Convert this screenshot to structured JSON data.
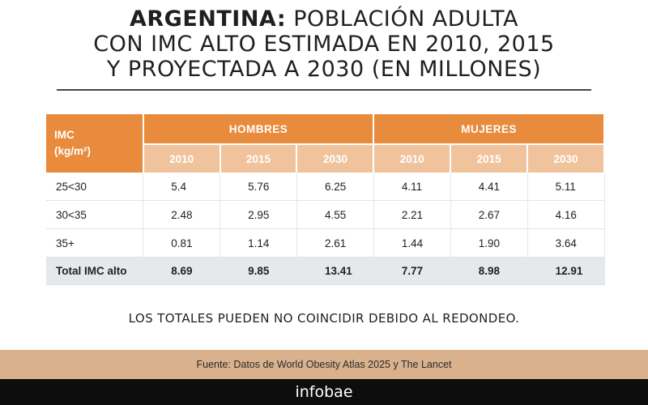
{
  "title": {
    "strong": "ARGENTINA:",
    "rest_line1": " POBLACIÓN ADULTA",
    "line2": "CON IMC ALTO ESTIMADA EN 2010, 2015",
    "line3": "Y PROYECTADA A 2030 (EN MILLONES)"
  },
  "table": {
    "row_header_line1": "IMC",
    "row_header_line2": "(kg/m²)",
    "groups": [
      "HOMBRES",
      "MUJERES"
    ],
    "years": [
      "2010",
      "2015",
      "2030",
      "2010",
      "2015",
      "2030"
    ],
    "rows": [
      {
        "label": "25<30",
        "values": [
          "5.4",
          "5.76",
          "6.25",
          "4.11",
          "4.41",
          "5.11"
        ]
      },
      {
        "label": "30<35",
        "values": [
          "2.48",
          "2.95",
          "4.55",
          "2.21",
          "2.67",
          "4.16"
        ]
      },
      {
        "label": "35+",
        "values": [
          "0.81",
          "1.14",
          "2.61",
          "1.44",
          "1.90",
          "3.64"
        ]
      },
      {
        "label": "Total IMC alto",
        "values": [
          "8.69",
          "9.85",
          "13.41",
          "7.77",
          "8.98",
          "12.91"
        ]
      }
    ]
  },
  "note": "LOS TOTALES PUEDEN NO COINCIDIR DEBIDO AL REDONDEO.",
  "source": "Fuente: Datos de World Obesity Atlas 2025 y The Lancet",
  "brand": "infobae",
  "colors": {
    "header_orange": "#e88b3c",
    "subheader_peach": "#f0c39c",
    "total_row_gray": "#e6e9ec",
    "source_band": "#d9b28d",
    "brand_band": "#0d0d0d"
  },
  "chart_data": {
    "type": "table",
    "title": "ARGENTINA: POBLACIÓN ADULTA CON IMC ALTO ESTIMADA EN 2010, 2015 Y PROYECTADA A 2030 (EN MILLONES)",
    "columns": [
      "IMC (kg/m²)",
      "HOMBRES 2010",
      "HOMBRES 2015",
      "HOMBRES 2030",
      "MUJERES 2010",
      "MUJERES 2015",
      "MUJERES 2030"
    ],
    "rows": [
      [
        "25<30",
        5.4,
        5.76,
        6.25,
        4.11,
        4.41,
        5.11
      ],
      [
        "30<35",
        2.48,
        2.95,
        4.55,
        2.21,
        2.67,
        4.16
      ],
      [
        "35+",
        0.81,
        1.14,
        2.61,
        1.44,
        1.9,
        3.64
      ],
      [
        "Total IMC alto",
        8.69,
        9.85,
        13.41,
        7.77,
        8.98,
        12.91
      ]
    ]
  }
}
